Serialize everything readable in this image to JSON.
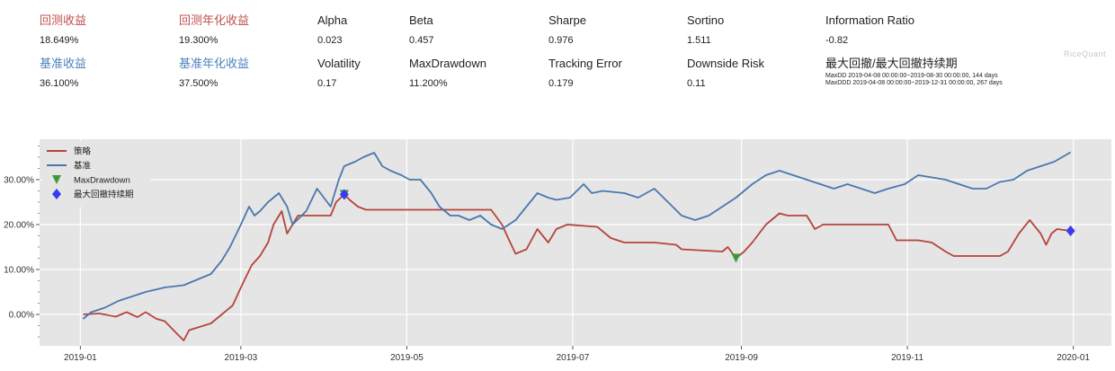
{
  "metrics_row1": [
    {
      "label": "回测收益",
      "value": "18.649%",
      "color": "red"
    },
    {
      "label": "回测年化收益",
      "value": "19.300%",
      "color": "red"
    },
    {
      "label": "Alpha",
      "value": "0.023",
      "color": "black"
    },
    {
      "label": "Beta",
      "value": "0.457",
      "color": "black"
    },
    {
      "label": "Sharpe",
      "value": "0.976",
      "color": "black"
    },
    {
      "label": "Sortino",
      "value": "1.511",
      "color": "black"
    },
    {
      "label": "Information Ratio",
      "value": "-0.82",
      "color": "black"
    }
  ],
  "metrics_row2": [
    {
      "label": "基准收益",
      "value": "36.100%",
      "color": "blue"
    },
    {
      "label": "基准年化收益",
      "value": "37.500%",
      "color": "blue"
    },
    {
      "label": "Volatility",
      "value": "0.17",
      "color": "black"
    },
    {
      "label": "MaxDrawdown",
      "value": "11.200%",
      "color": "black"
    },
    {
      "label": "Tracking Error",
      "value": "0.179",
      "color": "black"
    },
    {
      "label": "Downside Risk",
      "value": "0.11",
      "color": "black"
    }
  ],
  "drawdown_box": {
    "label": "最大回撤/最大回撤持续期",
    "maxdd": "MaxDD  2019-04-08 00:00:00~2019-08-30 00:00:00, 144 days",
    "maxddd": "MaxDDD 2019-04-08 00:00:00~2019-12-31 00:00:00, 267 days"
  },
  "brand": "RiceQuant",
  "colors": {
    "strategy": "#b5443c",
    "benchmark": "#4a78ad",
    "drawdown_marker": "#3c9a3c",
    "ddd_marker": "#3a3af0",
    "red": "#c0504d",
    "blue": "#4f81bd"
  },
  "chart_data": {
    "type": "line",
    "x_ticks": [
      "2019-01",
      "2019-03",
      "2019-05",
      "2019-07",
      "2019-09",
      "2019-11",
      "2020-01"
    ],
    "y_ticks": [
      "0.00%",
      "10.00%",
      "20.00%",
      "30.00%"
    ],
    "ylim": [
      -7,
      39
    ],
    "xlim": [
      "2018-12-17",
      "2020-01-15"
    ],
    "grid": true,
    "legend_position": "top-left",
    "series": [
      {
        "name": "策略",
        "color_key": "strategy",
        "points": [
          [
            "2019-01-02",
            0
          ],
          [
            "2019-01-08",
            0.2
          ],
          [
            "2019-01-14",
            -0.5
          ],
          [
            "2019-01-18",
            0.5
          ],
          [
            "2019-01-22",
            -0.6
          ],
          [
            "2019-01-25",
            0.5
          ],
          [
            "2019-01-29",
            -1
          ],
          [
            "2019-02-01",
            -1.5
          ],
          [
            "2019-02-05",
            -4
          ],
          [
            "2019-02-08",
            -5.8
          ],
          [
            "2019-02-10",
            -3.5
          ],
          [
            "2019-02-18",
            -2
          ],
          [
            "2019-02-22",
            0
          ],
          [
            "2019-02-26",
            2
          ],
          [
            "2019-03-01",
            6
          ],
          [
            "2019-03-05",
            11
          ],
          [
            "2019-03-08",
            13
          ],
          [
            "2019-03-11",
            16
          ],
          [
            "2019-03-13",
            20
          ],
          [
            "2019-03-16",
            23
          ],
          [
            "2019-03-18",
            18
          ],
          [
            "2019-03-22",
            22
          ],
          [
            "2019-03-29",
            22
          ],
          [
            "2019-04-03",
            22
          ],
          [
            "2019-04-05",
            25
          ],
          [
            "2019-04-08",
            26.7
          ],
          [
            "2019-04-10",
            25.5
          ],
          [
            "2019-04-13",
            24
          ],
          [
            "2019-04-16",
            23.3
          ],
          [
            "2019-05-01",
            23.3
          ],
          [
            "2019-05-25",
            23.3
          ],
          [
            "2019-06-01",
            23.3
          ],
          [
            "2019-06-05",
            20
          ],
          [
            "2019-06-08",
            16
          ],
          [
            "2019-06-10",
            13.5
          ],
          [
            "2019-06-14",
            14.5
          ],
          [
            "2019-06-18",
            19
          ],
          [
            "2019-06-22",
            16
          ],
          [
            "2019-06-25",
            19
          ],
          [
            "2019-06-29",
            20
          ],
          [
            "2019-07-10",
            19.5
          ],
          [
            "2019-07-15",
            17
          ],
          [
            "2019-07-20",
            16
          ],
          [
            "2019-07-31",
            16
          ],
          [
            "2019-08-08",
            15.5
          ],
          [
            "2019-08-10",
            14.5
          ],
          [
            "2019-08-25",
            14
          ],
          [
            "2019-08-27",
            15
          ],
          [
            "2019-08-30",
            12.5
          ],
          [
            "2019-09-02",
            14
          ],
          [
            "2019-09-05",
            16
          ],
          [
            "2019-09-10",
            20
          ],
          [
            "2019-09-15",
            22.5
          ],
          [
            "2019-09-18",
            22
          ],
          [
            "2019-09-25",
            22
          ],
          [
            "2019-09-28",
            19
          ],
          [
            "2019-10-01",
            20
          ],
          [
            "2019-10-25",
            20
          ],
          [
            "2019-10-28",
            16.5
          ],
          [
            "2019-11-05",
            16.5
          ],
          [
            "2019-11-10",
            16
          ],
          [
            "2019-11-15",
            14
          ],
          [
            "2019-11-18",
            13
          ],
          [
            "2019-11-30",
            13
          ],
          [
            "2019-12-05",
            13
          ],
          [
            "2019-12-08",
            14
          ],
          [
            "2019-12-12",
            18
          ],
          [
            "2019-12-16",
            21
          ],
          [
            "2019-12-20",
            18
          ],
          [
            "2019-12-22",
            15.5
          ],
          [
            "2019-12-24",
            18
          ],
          [
            "2019-12-26",
            19
          ],
          [
            "2019-12-31",
            18.6
          ]
        ]
      },
      {
        "name": "基准",
        "color_key": "benchmark",
        "points": [
          [
            "2019-01-02",
            -1
          ],
          [
            "2019-01-05",
            0.5
          ],
          [
            "2019-01-10",
            1.5
          ],
          [
            "2019-01-15",
            3
          ],
          [
            "2019-01-20",
            4
          ],
          [
            "2019-01-25",
            5
          ],
          [
            "2019-02-01",
            6
          ],
          [
            "2019-02-08",
            6.5
          ],
          [
            "2019-02-12",
            7.5
          ],
          [
            "2019-02-18",
            9
          ],
          [
            "2019-02-22",
            12
          ],
          [
            "2019-02-25",
            15
          ],
          [
            "2019-03-01",
            20
          ],
          [
            "2019-03-04",
            24
          ],
          [
            "2019-03-06",
            22
          ],
          [
            "2019-03-08",
            23
          ],
          [
            "2019-03-11",
            25
          ],
          [
            "2019-03-15",
            27
          ],
          [
            "2019-03-18",
            24
          ],
          [
            "2019-03-20",
            20
          ],
          [
            "2019-03-25",
            23
          ],
          [
            "2019-03-29",
            28
          ],
          [
            "2019-04-03",
            24
          ],
          [
            "2019-04-06",
            30
          ],
          [
            "2019-04-08",
            33
          ],
          [
            "2019-04-12",
            34
          ],
          [
            "2019-04-15",
            35
          ],
          [
            "2019-04-19",
            36
          ],
          [
            "2019-04-22",
            33
          ],
          [
            "2019-04-25",
            32
          ],
          [
            "2019-04-29",
            31
          ],
          [
            "2019-05-02",
            30
          ],
          [
            "2019-05-06",
            30
          ],
          [
            "2019-05-10",
            27
          ],
          [
            "2019-05-13",
            24
          ],
          [
            "2019-05-17",
            22
          ],
          [
            "2019-05-20",
            22
          ],
          [
            "2019-05-24",
            21
          ],
          [
            "2019-05-28",
            22
          ],
          [
            "2019-06-01",
            20
          ],
          [
            "2019-06-05",
            19
          ],
          [
            "2019-06-10",
            21
          ],
          [
            "2019-06-14",
            24
          ],
          [
            "2019-06-18",
            27
          ],
          [
            "2019-06-22",
            26
          ],
          [
            "2019-06-25",
            25.5
          ],
          [
            "2019-06-30",
            26
          ],
          [
            "2019-07-05",
            29
          ],
          [
            "2019-07-08",
            27
          ],
          [
            "2019-07-12",
            27.5
          ],
          [
            "2019-07-20",
            27
          ],
          [
            "2019-07-25",
            26
          ],
          [
            "2019-07-31",
            28
          ],
          [
            "2019-08-05",
            25
          ],
          [
            "2019-08-10",
            22
          ],
          [
            "2019-08-15",
            21
          ],
          [
            "2019-08-20",
            22
          ],
          [
            "2019-08-25",
            24
          ],
          [
            "2019-08-30",
            26
          ],
          [
            "2019-09-05",
            29
          ],
          [
            "2019-09-10",
            31
          ],
          [
            "2019-09-15",
            32
          ],
          [
            "2019-09-20",
            31
          ],
          [
            "2019-09-25",
            30
          ],
          [
            "2019-09-30",
            29
          ],
          [
            "2019-10-05",
            28
          ],
          [
            "2019-10-10",
            29
          ],
          [
            "2019-10-15",
            28
          ],
          [
            "2019-10-20",
            27
          ],
          [
            "2019-10-25",
            28
          ],
          [
            "2019-10-31",
            29
          ],
          [
            "2019-11-05",
            31
          ],
          [
            "2019-11-10",
            30.5
          ],
          [
            "2019-11-15",
            30
          ],
          [
            "2019-11-20",
            29
          ],
          [
            "2019-11-25",
            28
          ],
          [
            "2019-11-30",
            28
          ],
          [
            "2019-12-05",
            29.5
          ],
          [
            "2019-12-10",
            30
          ],
          [
            "2019-12-15",
            32
          ],
          [
            "2019-12-20",
            33
          ],
          [
            "2019-12-25",
            34
          ],
          [
            "2019-12-31",
            36.1
          ]
        ]
      }
    ],
    "markers": [
      {
        "name": "MaxDrawdown",
        "shape": "triangle-down",
        "color_key": "drawdown_marker",
        "points": [
          [
            "2019-04-08",
            26.7
          ],
          [
            "2019-08-30",
            12.5
          ]
        ]
      },
      {
        "name": "最大回撤持续期",
        "shape": "diamond",
        "color_key": "ddd_marker",
        "points": [
          [
            "2019-04-08",
            26.7
          ],
          [
            "2019-12-31",
            18.6
          ]
        ]
      }
    ]
  }
}
